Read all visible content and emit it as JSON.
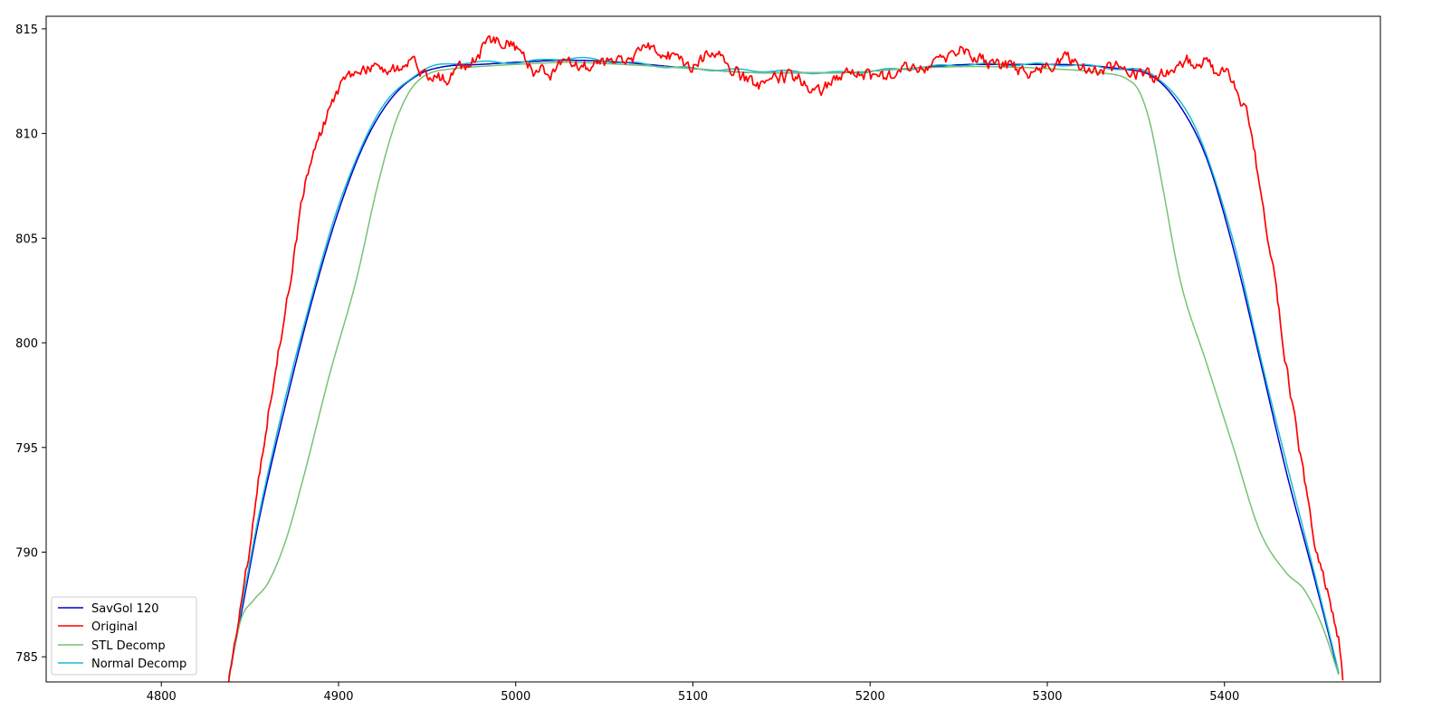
{
  "chart_data": {
    "type": "line",
    "title": "",
    "xlabel": "",
    "ylabel": "",
    "xlim": [
      4735,
      5488
    ],
    "ylim": [
      783.8,
      815.6
    ],
    "x_ticks": [
      4800,
      4900,
      5000,
      5100,
      5200,
      5300,
      5400
    ],
    "y_ticks": [
      785,
      790,
      795,
      800,
      805,
      810,
      815
    ],
    "grid": false,
    "legend_position": "lower-left",
    "series": [
      {
        "name": "SavGol 120",
        "color": "#0000cc",
        "style": "smooth",
        "x": [
          4838,
          4845,
          4855,
          4870,
          4885,
          4900,
          4915,
          4930,
          4945,
          4960,
          4980,
          5000,
          5030,
          5060,
          5100,
          5140,
          5180,
          5220,
          5260,
          5300,
          5340,
          5360,
          5375,
          5390,
          5405,
          5420,
          5435,
          5450,
          5465
        ],
        "values": [
          784.0,
          787.0,
          791.5,
          797.0,
          802.0,
          806.3,
          809.6,
          811.7,
          812.8,
          813.2,
          813.3,
          813.4,
          813.5,
          813.4,
          813.1,
          812.9,
          812.9,
          813.1,
          813.3,
          813.3,
          813.1,
          812.7,
          811.3,
          808.8,
          804.5,
          799.2,
          793.8,
          789.0,
          784.0
        ]
      },
      {
        "name": "Original",
        "color": "#ff0000",
        "style": "noisy",
        "x": [
          4838,
          4845,
          4852,
          4858,
          4865,
          4872,
          4878,
          4885,
          4892,
          4898,
          4905,
          4912,
          4920,
          4930,
          4940,
          4950,
          4960,
          4970,
          4980,
          4990,
          5000,
          5010,
          5020,
          5030,
          5040,
          5050,
          5060,
          5070,
          5080,
          5090,
          5100,
          5110,
          5120,
          5130,
          5140,
          5150,
          5160,
          5170,
          5180,
          5190,
          5200,
          5210,
          5220,
          5230,
          5240,
          5250,
          5260,
          5270,
          5280,
          5290,
          5300,
          5310,
          5320,
          5330,
          5340,
          5350,
          5360,
          5370,
          5380,
          5390,
          5395,
          5400,
          5405,
          5410,
          5415,
          5420,
          5425,
          5430,
          5435,
          5440,
          5445,
          5450,
          5455,
          5460,
          5465,
          5467
        ],
        "values": [
          784.0,
          787.5,
          791.5,
          795.5,
          799.0,
          802.5,
          806.0,
          808.8,
          810.5,
          811.8,
          812.6,
          813.1,
          813.2,
          813.1,
          813.3,
          812.8,
          812.6,
          813.2,
          813.9,
          814.5,
          814.1,
          813.0,
          812.9,
          813.6,
          813.2,
          813.3,
          813.3,
          813.9,
          814.1,
          813.6,
          813.1,
          813.8,
          813.2,
          812.6,
          812.3,
          812.7,
          812.6,
          812.0,
          812.7,
          813.0,
          812.7,
          812.6,
          813.2,
          813.1,
          813.3,
          814.1,
          813.7,
          813.3,
          813.2,
          813.0,
          813.3,
          813.6,
          813.2,
          813.1,
          813.1,
          812.8,
          812.7,
          812.9,
          813.4,
          813.4,
          813.0,
          812.9,
          812.3,
          811.5,
          810.0,
          807.5,
          805.0,
          802.0,
          799.0,
          796.0,
          793.5,
          791.0,
          789.0,
          787.5,
          785.5,
          784.0
        ]
      },
      {
        "name": "STL Decomp",
        "color": "#77c277",
        "style": "smooth",
        "x": [
          4838,
          4845,
          4852,
          4860,
          4870,
          4880,
          4895,
          4910,
          4922,
          4932,
          4940,
          4946,
          4952,
          4965,
          4980,
          5000,
          5030,
          5060,
          5100,
          5140,
          5180,
          5220,
          5260,
          5300,
          5330,
          5345,
          5352,
          5358,
          5365,
          5375,
          5390,
          5405,
          5420,
          5435,
          5445,
          5455,
          5465
        ],
        "values": [
          784.0,
          786.8,
          787.7,
          788.5,
          790.5,
          793.5,
          798.5,
          803.0,
          807.5,
          810.5,
          812.0,
          812.6,
          812.9,
          813.1,
          813.2,
          813.3,
          813.4,
          813.3,
          813.1,
          812.9,
          812.9,
          813.1,
          813.2,
          813.1,
          812.9,
          812.6,
          812.0,
          810.5,
          807.5,
          803.0,
          799.0,
          795.0,
          791.0,
          789.0,
          788.2,
          786.5,
          784.0
        ]
      },
      {
        "name": "Normal Decomp",
        "color": "#17becf",
        "style": "smooth-wavy",
        "x": [
          4838,
          4845,
          4855,
          4870,
          4885,
          4900,
          4915,
          4930,
          4945,
          4960,
          4980,
          5000,
          5030,
          5060,
          5100,
          5140,
          5180,
          5220,
          5260,
          5300,
          5340,
          5360,
          5375,
          5390,
          5405,
          5420,
          5435,
          5450,
          5465
        ],
        "values": [
          784.0,
          787.2,
          791.8,
          797.3,
          802.3,
          806.5,
          809.8,
          811.8,
          812.9,
          813.3,
          813.4,
          813.4,
          813.6,
          813.4,
          813.1,
          813.0,
          812.9,
          813.1,
          813.3,
          813.3,
          813.1,
          812.8,
          811.5,
          809.0,
          804.8,
          799.5,
          794.2,
          789.3,
          784.0
        ]
      }
    ]
  }
}
